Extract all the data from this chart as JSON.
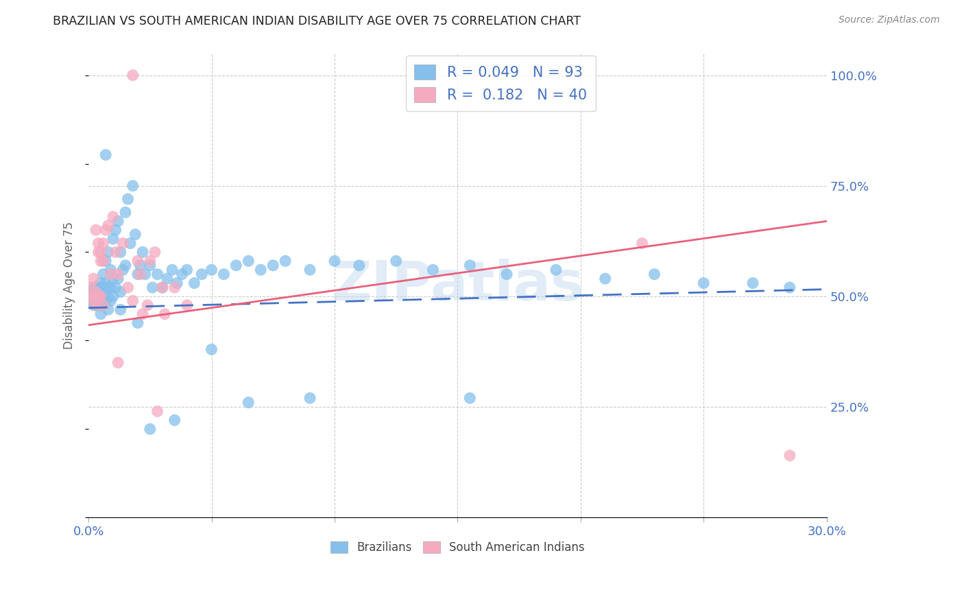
{
  "title": "BRAZILIAN VS SOUTH AMERICAN INDIAN DISABILITY AGE OVER 75 CORRELATION CHART",
  "source": "Source: ZipAtlas.com",
  "ylabel": "Disability Age Over 75",
  "xlim": [
    0.0,
    0.3
  ],
  "ylim": [
    0.0,
    1.05
  ],
  "ytick_vals": [
    0.0,
    0.25,
    0.5,
    0.75,
    1.0
  ],
  "ytick_labels": [
    "",
    "25.0%",
    "50.0%",
    "75.0%",
    "100.0%"
  ],
  "xtick_vals": [
    0.0,
    0.05,
    0.1,
    0.15,
    0.2,
    0.25,
    0.3
  ],
  "xtick_labels": [
    "0.0%",
    "",
    "",
    "",
    "",
    "",
    "30.0%"
  ],
  "blue_color": "#85BFEC",
  "pink_color": "#F5AABF",
  "line_blue": "#4472C4",
  "line_pink": "#E8607A",
  "axis_label_color": "#4472C4",
  "title_color": "#222222",
  "source_color": "#888888",
  "watermark": "ZIPatlas",
  "r_blue": 0.049,
  "n_blue": 93,
  "r_pink": 0.182,
  "n_pink": 40,
  "blue_trend": [
    0.474,
    0.516
  ],
  "pink_trend": [
    0.435,
    0.67
  ],
  "blue_x": [
    0.001,
    0.001,
    0.002,
    0.002,
    0.003,
    0.003,
    0.003,
    0.004,
    0.004,
    0.004,
    0.004,
    0.005,
    0.005,
    0.005,
    0.005,
    0.005,
    0.006,
    0.006,
    0.006,
    0.006,
    0.007,
    0.007,
    0.007,
    0.007,
    0.008,
    0.008,
    0.008,
    0.009,
    0.009,
    0.009,
    0.01,
    0.01,
    0.01,
    0.011,
    0.011,
    0.012,
    0.012,
    0.013,
    0.013,
    0.014,
    0.015,
    0.015,
    0.016,
    0.017,
    0.018,
    0.019,
    0.02,
    0.021,
    0.022,
    0.023,
    0.025,
    0.026,
    0.028,
    0.03,
    0.032,
    0.034,
    0.036,
    0.038,
    0.04,
    0.043,
    0.046,
    0.05,
    0.055,
    0.06,
    0.065,
    0.07,
    0.075,
    0.08,
    0.09,
    0.1,
    0.11,
    0.125,
    0.14,
    0.155,
    0.17,
    0.19,
    0.21,
    0.23,
    0.25,
    0.27,
    0.285,
    0.155,
    0.065,
    0.035,
    0.025,
    0.05,
    0.09,
    0.02,
    0.013,
    0.007,
    0.008,
    0.005,
    0.003
  ],
  "blue_y": [
    0.49,
    0.51,
    0.48,
    0.52,
    0.5,
    0.52,
    0.48,
    0.51,
    0.5,
    0.49,
    0.52,
    0.5,
    0.53,
    0.48,
    0.52,
    0.5,
    0.55,
    0.49,
    0.52,
    0.5,
    0.58,
    0.51,
    0.53,
    0.49,
    0.6,
    0.52,
    0.5,
    0.56,
    0.49,
    0.52,
    0.63,
    0.54,
    0.5,
    0.65,
    0.52,
    0.67,
    0.54,
    0.6,
    0.51,
    0.56,
    0.69,
    0.57,
    0.72,
    0.62,
    0.75,
    0.64,
    0.55,
    0.57,
    0.6,
    0.55,
    0.57,
    0.52,
    0.55,
    0.52,
    0.54,
    0.56,
    0.53,
    0.55,
    0.56,
    0.53,
    0.55,
    0.56,
    0.55,
    0.57,
    0.58,
    0.56,
    0.57,
    0.58,
    0.56,
    0.58,
    0.57,
    0.58,
    0.56,
    0.57,
    0.55,
    0.56,
    0.54,
    0.55,
    0.53,
    0.53,
    0.52,
    0.27,
    0.26,
    0.22,
    0.2,
    0.38,
    0.27,
    0.44,
    0.47,
    0.82,
    0.47,
    0.46,
    0.48
  ],
  "pink_x": [
    0.001,
    0.001,
    0.002,
    0.002,
    0.003,
    0.003,
    0.004,
    0.004,
    0.005,
    0.005,
    0.006,
    0.006,
    0.007,
    0.008,
    0.009,
    0.01,
    0.011,
    0.012,
    0.014,
    0.016,
    0.018,
    0.021,
    0.024,
    0.027,
    0.031,
    0.035,
    0.04,
    0.018,
    0.003,
    0.004,
    0.005,
    0.006,
    0.02,
    0.03,
    0.022,
    0.025,
    0.012,
    0.028,
    0.225,
    0.285
  ],
  "pink_y": [
    0.5,
    0.52,
    0.49,
    0.54,
    0.51,
    0.48,
    0.6,
    0.5,
    0.58,
    0.5,
    0.62,
    0.48,
    0.65,
    0.66,
    0.55,
    0.68,
    0.6,
    0.55,
    0.62,
    0.52,
    0.49,
    0.55,
    0.48,
    0.6,
    0.46,
    0.52,
    0.48,
    1.0,
    0.65,
    0.62,
    0.6,
    0.58,
    0.58,
    0.52,
    0.46,
    0.58,
    0.35,
    0.24,
    0.62,
    0.14
  ]
}
